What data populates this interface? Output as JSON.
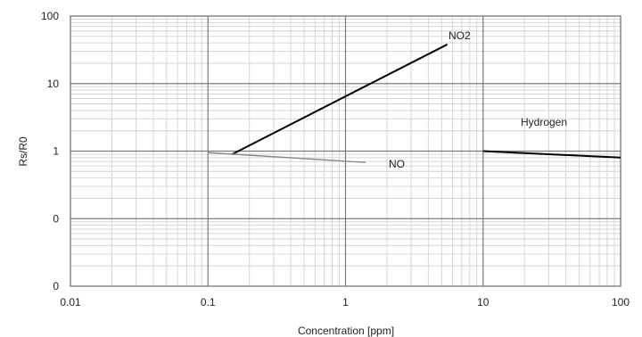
{
  "chart_data": {
    "type": "line",
    "title": "",
    "xlabel": "Concentration [ppm]",
    "ylabel": "Rs/R0",
    "x_scale": "log",
    "xlim": [
      0.01,
      100
    ],
    "x_ticks": [
      0.01,
      0.1,
      1,
      10,
      100
    ],
    "x_tick_labels": [
      "0.01",
      "0.1",
      "1",
      "10",
      "100"
    ],
    "y_scale": "log",
    "y_tick_labels": [
      "0",
      "0",
      "1",
      "10",
      "100"
    ],
    "grid": true,
    "series": [
      {
        "name": "NO2",
        "color": "#000000",
        "x": [
          0.15,
          5.5
        ],
        "y": [
          0.9,
          38
        ]
      },
      {
        "name": "NO",
        "color": "#888888",
        "x": [
          0.1,
          1.4
        ],
        "y": [
          0.95,
          0.68
        ]
      },
      {
        "name": "Hydrogen",
        "color": "#000000",
        "x": [
          10,
          100
        ],
        "y": [
          1.0,
          0.8
        ]
      }
    ]
  }
}
